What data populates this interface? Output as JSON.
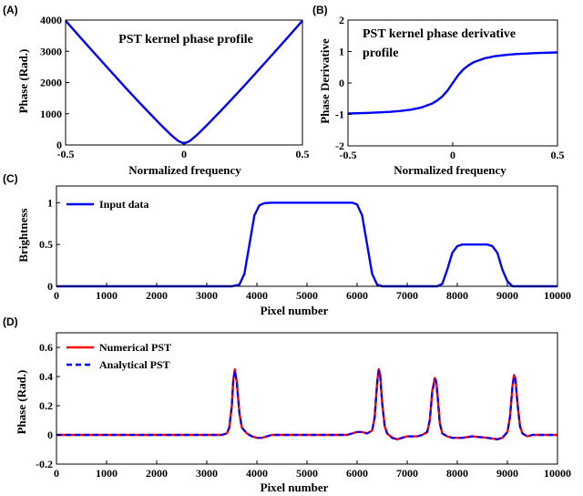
{
  "chart_data": [
    {
      "panel_label": "(A)",
      "type": "line",
      "title": "PST kernel phase profile",
      "xlabel": "Normalized frequency",
      "ylabel": "Phase (Rad.)",
      "xlim": [
        -0.5,
        0.5
      ],
      "ylim": [
        0,
        4000
      ],
      "xticks": [
        "-0.5",
        "0",
        "0.5"
      ],
      "yticks": [
        "0",
        "1000",
        "2000",
        "3000",
        "4000"
      ],
      "x": [
        -0.5,
        -0.45,
        -0.4,
        -0.35,
        -0.3,
        -0.25,
        -0.2,
        -0.15,
        -0.1,
        -0.075,
        -0.05,
        -0.025,
        0,
        0.025,
        0.05,
        0.075,
        0.1,
        0.15,
        0.2,
        0.25,
        0.3,
        0.35,
        0.4,
        0.45,
        0.5
      ],
      "series": [
        {
          "name": "PST kernel phase",
          "color": "#0000ff",
          "values": [
            3980,
            3550,
            3120,
            2700,
            2280,
            1860,
            1450,
            1050,
            660,
            470,
            290,
            130,
            40,
            130,
            290,
            470,
            660,
            1050,
            1450,
            1860,
            2280,
            2700,
            3120,
            3550,
            3980
          ]
        }
      ]
    },
    {
      "panel_label": "(B)",
      "type": "line",
      "title": "PST kernel phase derivative profile",
      "xlabel": "Normalized frequency",
      "ylabel": "Phase Derivative",
      "xlim": [
        -0.5,
        0.5
      ],
      "ylim": [
        -2,
        2
      ],
      "xticks": [
        "-0.5",
        "0",
        "0.5"
      ],
      "yticks": [
        "-2",
        "-1",
        "0",
        "1",
        "2"
      ],
      "x": [
        -0.5,
        -0.4,
        -0.3,
        -0.25,
        -0.2,
        -0.15,
        -0.1,
        -0.075,
        -0.05,
        -0.025,
        0,
        0.025,
        0.05,
        0.075,
        0.1,
        0.15,
        0.2,
        0.25,
        0.3,
        0.4,
        0.5
      ],
      "series": [
        {
          "name": "PST kernel phase derivative",
          "color": "#0000ff",
          "values": [
            -0.97,
            -0.95,
            -0.92,
            -0.89,
            -0.85,
            -0.78,
            -0.66,
            -0.56,
            -0.43,
            -0.24,
            0.0,
            0.24,
            0.43,
            0.56,
            0.66,
            0.78,
            0.85,
            0.89,
            0.92,
            0.95,
            0.97
          ]
        }
      ]
    },
    {
      "panel_label": "(C)",
      "type": "line",
      "title": "",
      "xlabel": "Pixel number",
      "ylabel": "Brightness",
      "xlim": [
        0,
        10000
      ],
      "ylim": [
        0,
        1.2
      ],
      "xticks": [
        "0",
        "1000",
        "2000",
        "3000",
        "4000",
        "5000",
        "6000",
        "7000",
        "8000",
        "9000",
        "10000"
      ],
      "yticks": [
        "0",
        "0.5",
        "1"
      ],
      "legend": "top-left",
      "x": [
        0,
        3500,
        3650,
        3750,
        3850,
        3950,
        4050,
        4150,
        4300,
        5900,
        6000,
        6100,
        6200,
        6300,
        6400,
        6500,
        7600,
        7700,
        7800,
        7900,
        8000,
        8100,
        8600,
        8700,
        8800,
        8900,
        9000,
        9100,
        10000
      ],
      "series": [
        {
          "name": "Input data",
          "color": "#0000ff",
          "values": [
            0,
            0,
            0.02,
            0.15,
            0.5,
            0.85,
            0.97,
            0.995,
            1,
            1,
            0.98,
            0.85,
            0.5,
            0.15,
            0.02,
            0,
            0,
            0.03,
            0.2,
            0.4,
            0.48,
            0.5,
            0.5,
            0.48,
            0.4,
            0.2,
            0.06,
            0,
            0
          ]
        }
      ]
    },
    {
      "panel_label": "(D)",
      "type": "line",
      "title": "",
      "xlabel": "Pixel number",
      "ylabel": "Phase (Rad.)",
      "xlim": [
        0,
        10000
      ],
      "ylim": [
        -0.2,
        0.7
      ],
      "xticks": [
        "0",
        "1000",
        "2000",
        "3000",
        "4000",
        "5000",
        "6000",
        "7000",
        "8000",
        "9000",
        "10000"
      ],
      "yticks": [
        "-0.2",
        "0",
        "0.2",
        "0.4",
        "0.6"
      ],
      "legend": "top-left",
      "x": [
        0,
        3300,
        3400,
        3450,
        3500,
        3530,
        3560,
        3600,
        3650,
        3700,
        3800,
        3900,
        4000,
        4100,
        4200,
        4300,
        5800,
        5900,
        6000,
        6100,
        6200,
        6300,
        6350,
        6400,
        6430,
        6460,
        6500,
        6550,
        6600,
        6700,
        6800,
        6900,
        7000,
        7100,
        7200,
        7300,
        7400,
        7450,
        7500,
        7550,
        7580,
        7610,
        7650,
        7700,
        7800,
        7900,
        8000,
        8100,
        8300,
        8600,
        8800,
        8900,
        9000,
        9050,
        9100,
        9130,
        9160,
        9200,
        9250,
        9300,
        9400,
        9500,
        9600,
        10000
      ],
      "series": [
        {
          "name": "Numerical PST",
          "color": "#ff0000",
          "values": [
            0,
            0,
            0.01,
            0.05,
            0.2,
            0.38,
            0.45,
            0.36,
            0.15,
            0.05,
            0.01,
            -0.01,
            -0.02,
            -0.02,
            -0.01,
            0,
            0,
            0.01,
            0.02,
            0.02,
            0.01,
            0.03,
            0.12,
            0.36,
            0.45,
            0.42,
            0.22,
            0.06,
            0.01,
            -0.02,
            -0.03,
            -0.02,
            -0.01,
            -0.01,
            -0.01,
            0,
            0.02,
            0.1,
            0.3,
            0.39,
            0.37,
            0.25,
            0.08,
            0.01,
            -0.01,
            -0.02,
            -0.02,
            -0.02,
            -0.01,
            -0.02,
            -0.03,
            -0.02,
            0.02,
            0.12,
            0.33,
            0.41,
            0.39,
            0.22,
            0.06,
            0.01,
            -0.01,
            0,
            0,
            0
          ]
        },
        {
          "name": "Analytical PST",
          "color": "#0000ff",
          "values": [
            0,
            0,
            0.01,
            0.05,
            0.2,
            0.37,
            0.44,
            0.36,
            0.15,
            0.05,
            0.01,
            -0.01,
            -0.02,
            -0.02,
            -0.01,
            0,
            0,
            0.01,
            0.02,
            0.02,
            0.01,
            0.03,
            0.12,
            0.35,
            0.44,
            0.41,
            0.22,
            0.06,
            0.01,
            -0.02,
            -0.03,
            -0.02,
            -0.01,
            -0.01,
            -0.01,
            0,
            0.02,
            0.1,
            0.29,
            0.38,
            0.36,
            0.25,
            0.08,
            0.01,
            -0.01,
            -0.02,
            -0.02,
            -0.02,
            -0.01,
            -0.02,
            -0.03,
            -0.02,
            0.02,
            0.12,
            0.32,
            0.4,
            0.38,
            0.22,
            0.06,
            0.01,
            -0.01,
            0,
            0,
            0
          ]
        }
      ]
    }
  ]
}
